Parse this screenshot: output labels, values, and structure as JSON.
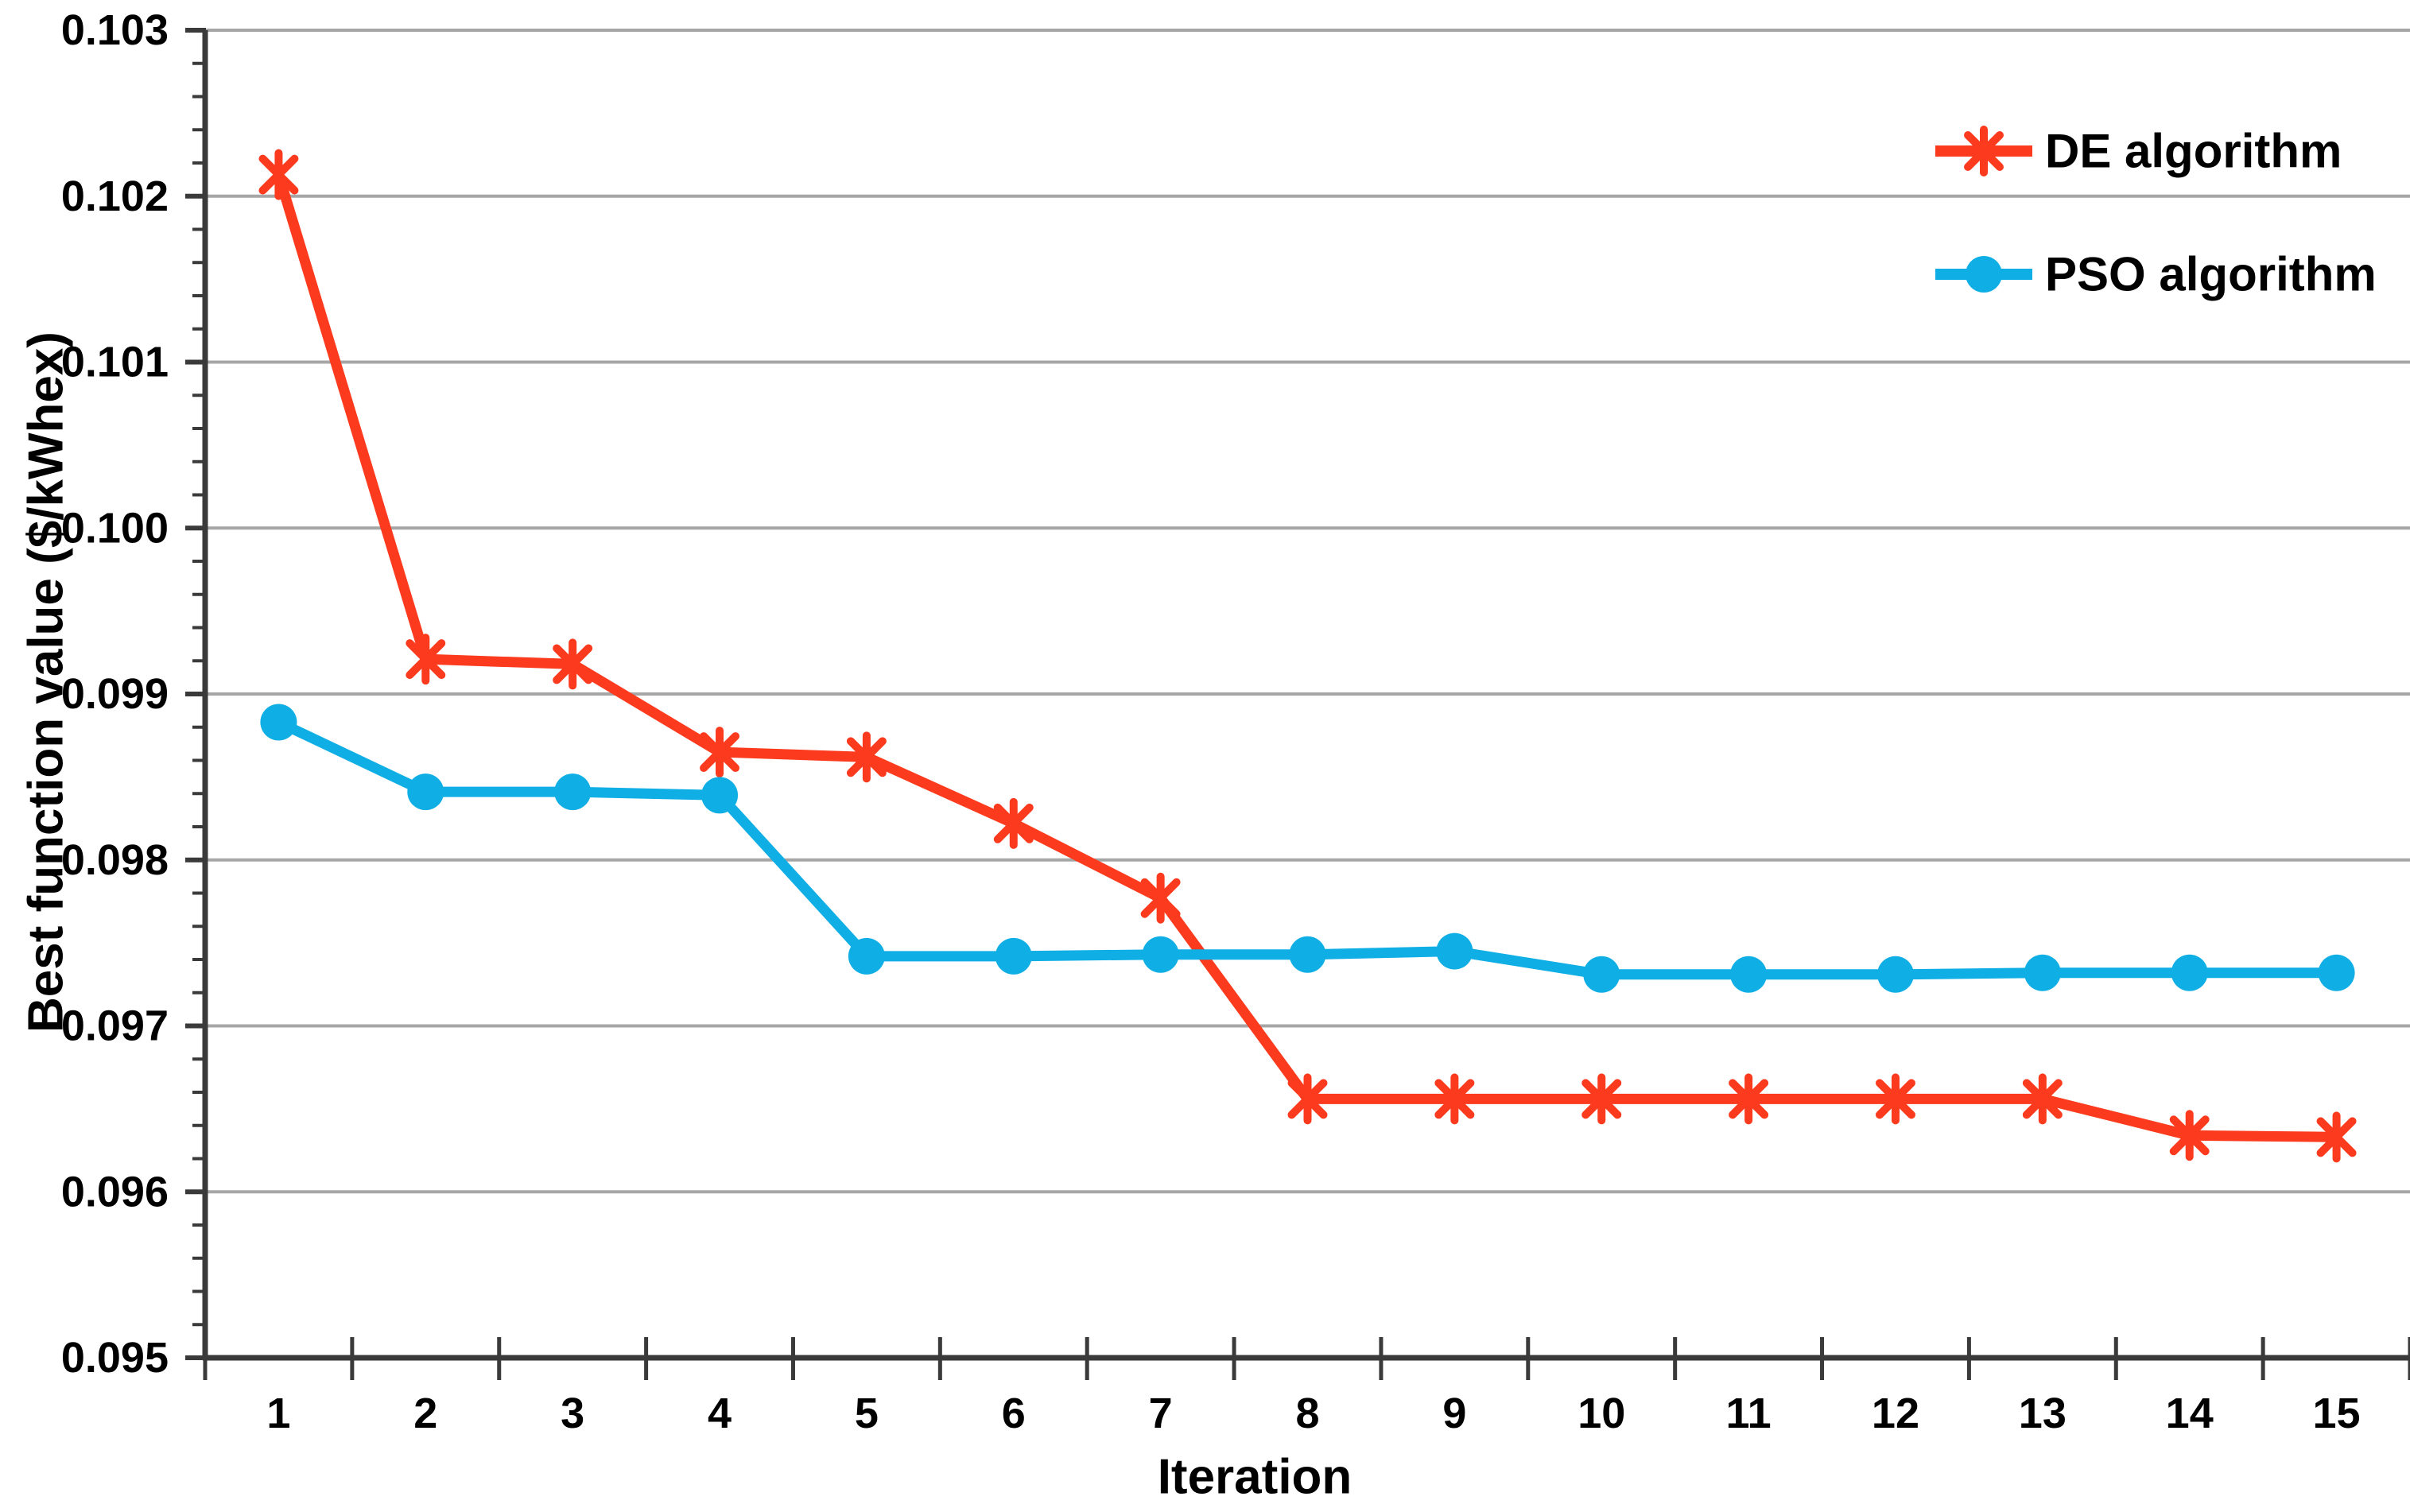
{
  "figure": {
    "description": "Convergence comparison line chart of DE and PSO algorithms"
  },
  "chart_data": {
    "type": "line",
    "title": "",
    "xlabel": "Iteration",
    "ylabel": "Best function value ($/kWhex)",
    "x": [
      1,
      2,
      3,
      4,
      5,
      6,
      7,
      8,
      9,
      10,
      11,
      12,
      13,
      14,
      15
    ],
    "series": [
      {
        "name": "DE algorithm",
        "color": "#FB3A1E",
        "marker": "asterisk",
        "values": [
          0.10213,
          0.09921,
          0.09918,
          0.09865,
          0.09862,
          0.09822,
          0.09777,
          0.09656,
          0.09656,
          0.09656,
          0.09656,
          0.09656,
          0.09656,
          0.09634,
          0.09633
        ]
      },
      {
        "name": "PSO algorithm",
        "color": "#0FAEE5",
        "marker": "circle",
        "values": [
          0.09883,
          0.09841,
          0.09841,
          0.09839,
          0.09742,
          0.09742,
          0.09743,
          0.09743,
          0.09745,
          0.09731,
          0.09731,
          0.09731,
          0.09732,
          0.09732,
          0.09732
        ]
      }
    ],
    "ylim": [
      0.095,
      0.103
    ],
    "yticks": [
      {
        "value": 0.103,
        "label": "0.103"
      },
      {
        "value": 0.102,
        "label": "0.102"
      },
      {
        "value": 0.101,
        "label": "0.101"
      },
      {
        "value": 0.1,
        "label": "0.100"
      },
      {
        "value": 0.099,
        "label": "0.099"
      },
      {
        "value": 0.098,
        "label": "0.098"
      },
      {
        "value": 0.097,
        "label": "0.097"
      },
      {
        "value": 0.096,
        "label": "0.096"
      },
      {
        "value": 0.095,
        "label": "0.095"
      }
    ],
    "y_minor_step": 0.0002,
    "xticks": [
      "1",
      "2",
      "3",
      "4",
      "5",
      "6",
      "7",
      "8",
      "9",
      "10",
      "11",
      "12",
      "13",
      "14",
      "15"
    ],
    "grid": "horizontal-major",
    "legend_position": "top-right",
    "colors": {
      "axis": "#3A3A3A",
      "gridline": "#A6A6A6",
      "text": "#000000",
      "background": "#FFFFFF"
    }
  }
}
